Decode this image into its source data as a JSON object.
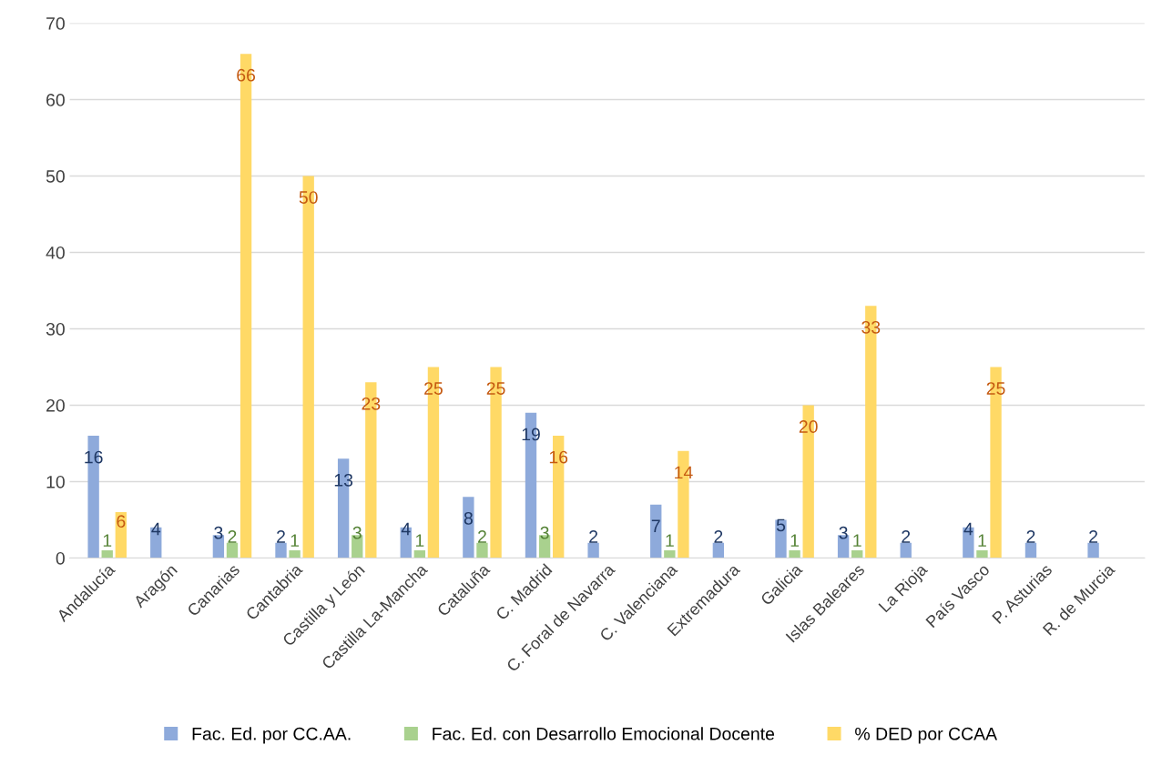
{
  "chart_data": {
    "type": "bar",
    "categories": [
      "Andalucía",
      "Aragón",
      "Canarias",
      "Cantabria",
      "Castilla y León",
      "Castilla La-Mancha",
      "Cataluña",
      "C. Madrid",
      "C. Foral de Navarra",
      "C. Valenciana",
      "Extremadura",
      "Galicia",
      "Islas Baleares",
      "La Rioja",
      "País Vasco",
      "P. Asturias",
      "R. de Murcia"
    ],
    "series": [
      {
        "name": "Fac. Ed. por CC.AA.",
        "color": "#8eaadb",
        "values": [
          16,
          4,
          3,
          2,
          13,
          4,
          8,
          19,
          2,
          7,
          2,
          5,
          3,
          2,
          4,
          2,
          2
        ]
      },
      {
        "name": "Fac. Ed. con Desarrollo Emocional Docente",
        "color": "#a9d18e",
        "values": [
          1,
          null,
          2,
          1,
          3,
          1,
          2,
          3,
          null,
          1,
          null,
          1,
          1,
          null,
          1,
          null,
          null
        ]
      },
      {
        "name": "% DED por CCAA",
        "color": "#ffd966",
        "values": [
          6,
          null,
          66,
          50,
          23,
          25,
          25,
          16,
          null,
          14,
          null,
          20,
          33,
          null,
          25,
          null,
          null
        ]
      }
    ],
    "ylim": [
      0,
      70
    ],
    "yticks": [
      0,
      10,
      20,
      30,
      40,
      50,
      60,
      70
    ],
    "grid": "y",
    "legend": "bottom",
    "data_labels": true
  }
}
